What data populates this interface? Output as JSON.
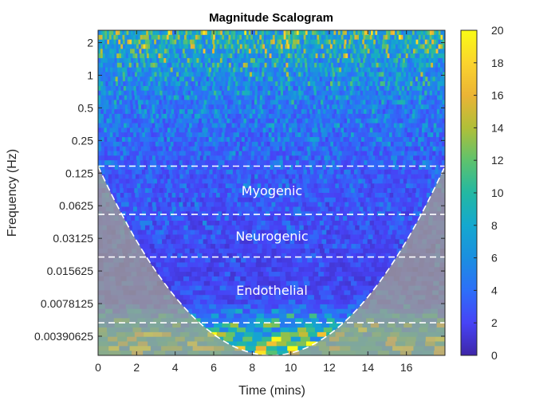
{
  "chart_data": {
    "type": "heatmap",
    "title": "Magnitude Scalogram",
    "xlabel": "Time (mins)",
    "ylabel": "Frequency (Hz)",
    "xlim": [
      0,
      18
    ],
    "ylim_hz": [
      0.0026,
      2.6
    ],
    "y_scale": "log2",
    "x_ticks": [
      "0",
      "2",
      "4",
      "6",
      "8",
      "10",
      "12",
      "14",
      "16"
    ],
    "x_tick_values": [
      0,
      2,
      4,
      6,
      8,
      10,
      12,
      14,
      16
    ],
    "y_ticks": [
      "2",
      "1",
      "0.5",
      "0.25",
      "0.125",
      "0.0625",
      "0.03125",
      "0.015625",
      "0.0078125",
      "0.00390625"
    ],
    "y_tick_values": [
      2,
      1,
      0.5,
      0.25,
      0.125,
      0.0625,
      0.03125,
      0.015625,
      0.0078125,
      0.00390625
    ],
    "colorbar": {
      "min": 0,
      "max": 20,
      "ticks": [
        "0",
        "2",
        "4",
        "6",
        "8",
        "10",
        "12",
        "14",
        "16",
        "18",
        "20"
      ],
      "tick_values": [
        0,
        2,
        4,
        6,
        8,
        10,
        12,
        14,
        16,
        18,
        20
      ],
      "colormap": "parula",
      "colors": [
        "#3e26a8",
        "#4743f6",
        "#2d6ff8",
        "#1b8fe0",
        "#14a8cf",
        "#23b8a2",
        "#5ec26d",
        "#b0bf38",
        "#ebb435",
        "#fbd42d",
        "#f9fb15"
      ]
    },
    "band_boundaries_hz": [
      0.145,
      0.052,
      0.021,
      0.0052
    ],
    "bands": [
      {
        "label": "Myogenic",
        "range_hz": [
          0.052,
          0.145
        ]
      },
      {
        "label": "Neurogenic",
        "range_hz": [
          0.021,
          0.052
        ]
      },
      {
        "label": "Endothelial",
        "range_hz": [
          0.0052,
          0.021
        ]
      }
    ],
    "cone_of_influence": "dashed white, shaded outside",
    "magnitude_profile": [
      {
        "freq_hz": 2.4,
        "mean_magnitude": 12
      },
      {
        "freq_hz": 1.0,
        "mean_magnitude": 8
      },
      {
        "freq_hz": 0.5,
        "mean_magnitude": 6
      },
      {
        "freq_hz": 0.25,
        "mean_magnitude": 5
      },
      {
        "freq_hz": 0.125,
        "mean_magnitude": 4
      },
      {
        "freq_hz": 0.0625,
        "mean_magnitude": 3.5
      },
      {
        "freq_hz": 0.03125,
        "mean_magnitude": 3
      },
      {
        "freq_hz": 0.015625,
        "mean_magnitude": 2.5
      },
      {
        "freq_hz": 0.0078125,
        "mean_magnitude": 3
      },
      {
        "freq_hz": 0.0039,
        "mean_magnitude": 14
      }
    ]
  }
}
